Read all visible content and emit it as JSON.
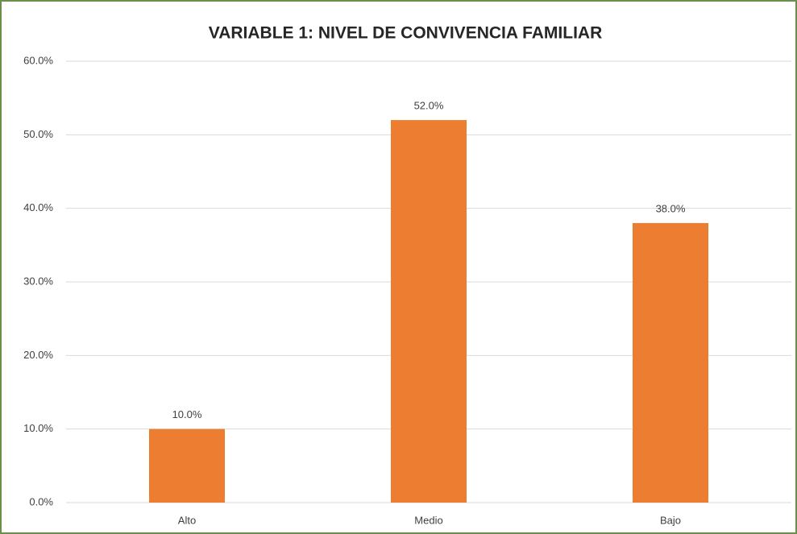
{
  "chart_data": {
    "type": "bar",
    "title": "VARIABLE 1: NIVEL DE CONVIVENCIA FAMILIAR",
    "categories": [
      "Alto",
      "Medio",
      "Bajo"
    ],
    "values": [
      10,
      52,
      38
    ],
    "value_labels": [
      "10.0%",
      "52.0%",
      "38.0%"
    ],
    "color": "#ed7d31",
    "ylim": [
      0,
      60
    ],
    "yticks": [
      {
        "value": 0,
        "label": "0.0%"
      },
      {
        "value": 10,
        "label": "10.0%"
      },
      {
        "value": 20,
        "label": "20.0%"
      },
      {
        "value": 30,
        "label": "30.0%"
      },
      {
        "value": 40,
        "label": "40.0%"
      },
      {
        "value": 50,
        "label": "50.0%"
      },
      {
        "value": 60,
        "label": "60.0%"
      }
    ],
    "grid": true
  }
}
